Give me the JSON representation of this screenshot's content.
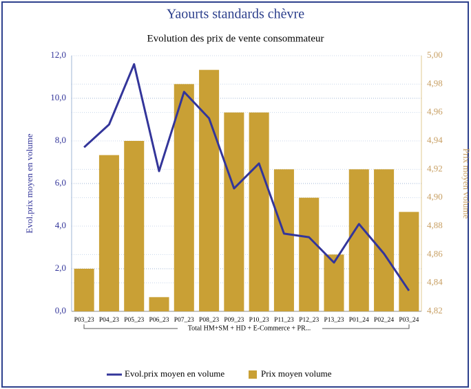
{
  "chart_data": {
    "type": "bar_line",
    "title": "Yaourts standards chèvre",
    "subtitle": "Evolution des prix de vente consommateur",
    "y_label": "Evol.prix moyen en volume",
    "y2_label": "Prix moyen volume",
    "group_label": "Total HM+SM + HD + E-Commerce + PR...",
    "categories": [
      "P03_23",
      "P04_23",
      "P05_23",
      "P06_23",
      "P07_23",
      "P08_23",
      "P09_23",
      "P10_23",
      "P11_23",
      "P12_23",
      "P13_23",
      "P01_24",
      "P02_24",
      "P03_24"
    ],
    "series": [
      {
        "name": "Evol.prix moyen en volume",
        "type": "line",
        "color": "#33359a",
        "axis": "y",
        "values": [
          7.7,
          8.77,
          11.6,
          6.58,
          10.3,
          9.06,
          5.77,
          6.94,
          3.65,
          3.48,
          2.29,
          4.1,
          2.71,
          0.97
        ]
      },
      {
        "name": "Prix moyen volume",
        "type": "bar",
        "color": "#c9a035",
        "axis": "y2",
        "values": [
          4.85,
          4.93,
          4.94,
          4.83,
          4.98,
          4.99,
          4.96,
          4.96,
          4.92,
          4.9,
          4.86,
          4.92,
          4.92,
          4.89
        ]
      }
    ],
    "ylim": [
      0,
      12
    ],
    "yticks": [
      {
        "value": 0,
        "label": "0,0"
      },
      {
        "value": 2,
        "label": "2,0"
      },
      {
        "value": 4,
        "label": "4,0"
      },
      {
        "value": 6,
        "label": "6,0"
      },
      {
        "value": 8,
        "label": "8,0"
      },
      {
        "value": 10,
        "label": "10,0"
      },
      {
        "value": 12,
        "label": "12,0"
      }
    ],
    "y2lim": [
      4.82,
      5.0
    ],
    "y2ticks": [
      {
        "value": 4.82,
        "label": "4,82"
      },
      {
        "value": 4.84,
        "label": "4,84"
      },
      {
        "value": 4.86,
        "label": "4,86"
      },
      {
        "value": 4.88,
        "label": "4,88"
      },
      {
        "value": 4.9,
        "label": "4,90"
      },
      {
        "value": 4.92,
        "label": "4,92"
      },
      {
        "value": 4.94,
        "label": "4,94"
      },
      {
        "value": 4.96,
        "label": "4,96"
      },
      {
        "value": 4.98,
        "label": "4,98"
      },
      {
        "value": 5.0,
        "label": "5,00"
      }
    ],
    "grid": true,
    "legend": "bottom"
  }
}
